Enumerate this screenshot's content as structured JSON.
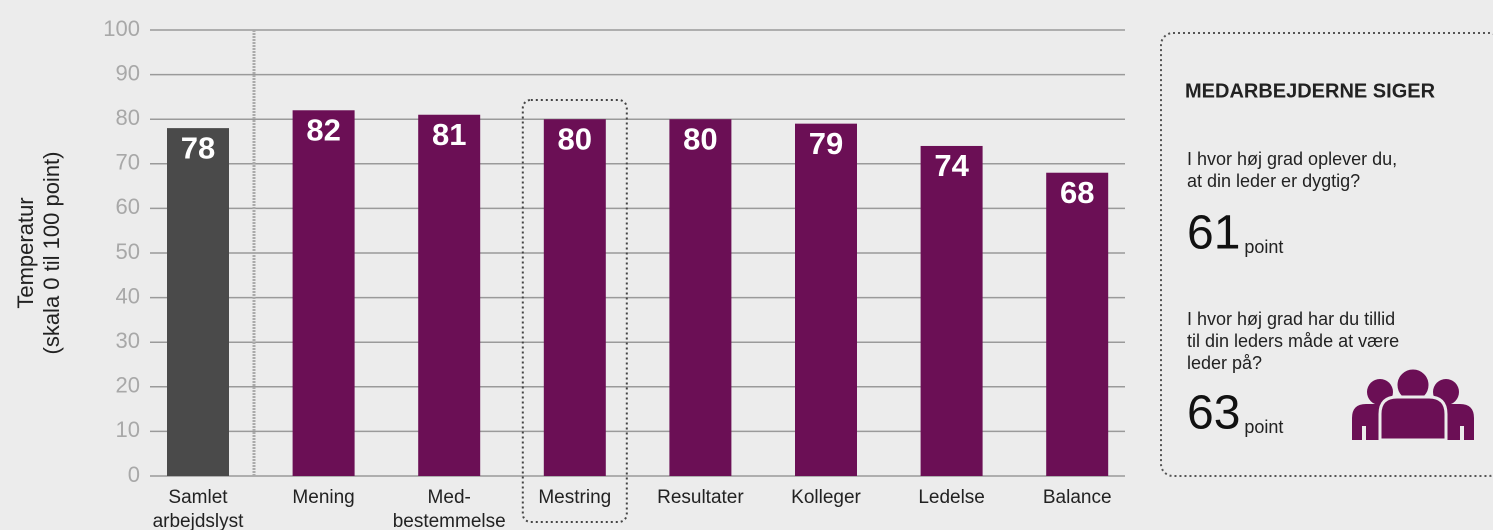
{
  "chart_data": {
    "type": "bar",
    "ylabel": [
      "Temperatur",
      "(skala 0 til 100 point)"
    ],
    "categories": [
      "Samlet arbejdslyst",
      "Mening",
      "Med-bestemmelse",
      "Mestring",
      "Resultater",
      "Kolleger",
      "Ledelse",
      "Balance"
    ],
    "values": [
      78,
      82,
      81,
      80,
      80,
      79,
      74,
      68
    ],
    "colors": [
      "#4a4a4a",
      "#6b0f55",
      "#6b0f55",
      "#6b0f55",
      "#6b0f55",
      "#6b0f55",
      "#6b0f55",
      "#6b0f55"
    ],
    "highlight": 3,
    "ylim": [
      0,
      100
    ],
    "yticks": [
      0,
      10,
      20,
      30,
      40,
      50,
      60,
      70,
      80,
      90,
      100
    ],
    "grid": true
  },
  "panel": {
    "title": "MEDARBEJDERNE SIGER",
    "items": [
      {
        "question": [
          "I hvor høj grad oplever du,",
          "at din leder er dygtig?"
        ],
        "value": 61,
        "unit": "point"
      },
      {
        "question": [
          "I hvor høj grad har du tillid",
          "til din leders måde at være",
          "leder på?"
        ],
        "value": 63,
        "unit": "point"
      }
    ]
  }
}
